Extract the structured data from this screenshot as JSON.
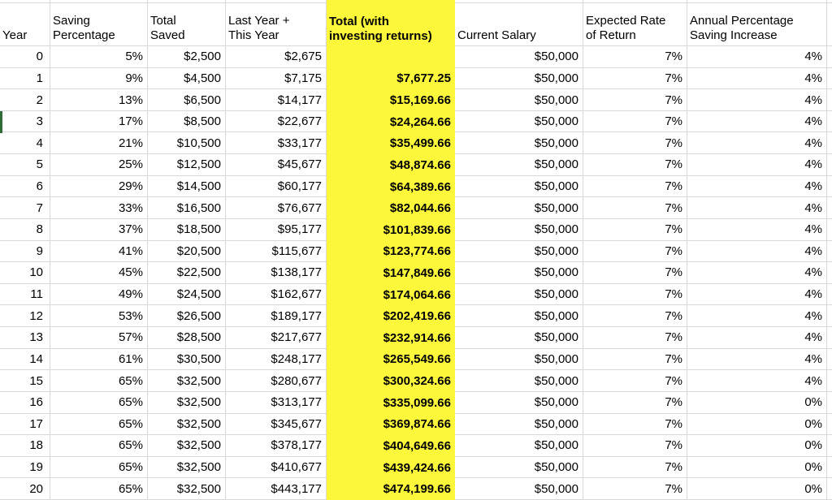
{
  "table": {
    "columns": [
      {
        "key": "year",
        "label": "Year"
      },
      {
        "key": "saving_percentage",
        "label": "Saving\nPercentage"
      },
      {
        "key": "total_saved",
        "label": "Total\nSaved"
      },
      {
        "key": "last_year_plus_this_year",
        "label": "Last Year +\nThis Year"
      },
      {
        "key": "total_with_investing_returns",
        "label": "Total (with\ninvesting returns)",
        "highlight": true
      },
      {
        "key": "current_salary",
        "label": "Current Salary"
      },
      {
        "key": "expected_rate_of_return",
        "label": "Expected Rate\nof Return"
      },
      {
        "key": "annual_percentage_saving_increase",
        "label": "Annual Percentage\nSaving Increase"
      }
    ],
    "rows": [
      [
        "0",
        "5%",
        "$2,500",
        "$2,675",
        "",
        "$50,000",
        "7%",
        "4%"
      ],
      [
        "1",
        "9%",
        "$4,500",
        "$7,175",
        "$7,677.25",
        "$50,000",
        "7%",
        "4%"
      ],
      [
        "2",
        "13%",
        "$6,500",
        "$14,177",
        "$15,169.66",
        "$50,000",
        "7%",
        "4%"
      ],
      [
        "3",
        "17%",
        "$8,500",
        "$22,677",
        "$24,264.66",
        "$50,000",
        "7%",
        "4%"
      ],
      [
        "4",
        "21%",
        "$10,500",
        "$33,177",
        "$35,499.66",
        "$50,000",
        "7%",
        "4%"
      ],
      [
        "5",
        "25%",
        "$12,500",
        "$45,677",
        "$48,874.66",
        "$50,000",
        "7%",
        "4%"
      ],
      [
        "6",
        "29%",
        "$14,500",
        "$60,177",
        "$64,389.66",
        "$50,000",
        "7%",
        "4%"
      ],
      [
        "7",
        "33%",
        "$16,500",
        "$76,677",
        "$82,044.66",
        "$50,000",
        "7%",
        "4%"
      ],
      [
        "8",
        "37%",
        "$18,500",
        "$95,177",
        "$101,839.66",
        "$50,000",
        "7%",
        "4%"
      ],
      [
        "9",
        "41%",
        "$20,500",
        "$115,677",
        "$123,774.66",
        "$50,000",
        "7%",
        "4%"
      ],
      [
        "10",
        "45%",
        "$22,500",
        "$138,177",
        "$147,849.66",
        "$50,000",
        "7%",
        "4%"
      ],
      [
        "11",
        "49%",
        "$24,500",
        "$162,677",
        "$174,064.66",
        "$50,000",
        "7%",
        "4%"
      ],
      [
        "12",
        "53%",
        "$26,500",
        "$189,177",
        "$202,419.66",
        "$50,000",
        "7%",
        "4%"
      ],
      [
        "13",
        "57%",
        "$28,500",
        "$217,677",
        "$232,914.66",
        "$50,000",
        "7%",
        "4%"
      ],
      [
        "14",
        "61%",
        "$30,500",
        "$248,177",
        "$265,549.66",
        "$50,000",
        "7%",
        "4%"
      ],
      [
        "15",
        "65%",
        "$32,500",
        "$280,677",
        "$300,324.66",
        "$50,000",
        "7%",
        "4%"
      ],
      [
        "16",
        "65%",
        "$32,500",
        "$313,177",
        "$335,099.66",
        "$50,000",
        "7%",
        "0%"
      ],
      [
        "17",
        "65%",
        "$32,500",
        "$345,677",
        "$369,874.66",
        "$50,000",
        "7%",
        "0%"
      ],
      [
        "18",
        "65%",
        "$32,500",
        "$378,177",
        "$404,649.66",
        "$50,000",
        "7%",
        "0%"
      ],
      [
        "19",
        "65%",
        "$32,500",
        "$410,677",
        "$439,424.66",
        "$50,000",
        "7%",
        "0%"
      ],
      [
        "20",
        "65%",
        "$32,500",
        "$443,177",
        "$474,199.66",
        "$50,000",
        "7%",
        "0%"
      ]
    ]
  },
  "colors": {
    "highlight_column": "#fdf73c",
    "gridline": "#d8d8d8",
    "row_selection_marker": "#2e6b37"
  }
}
